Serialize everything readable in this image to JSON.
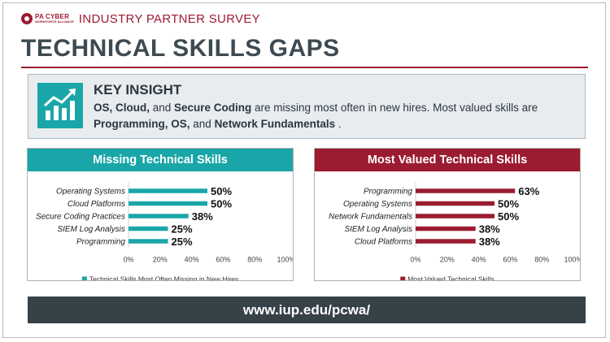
{
  "header": {
    "logo_text": "PA CYBER",
    "logo_sub": "WORKFORCE ALLIANCE",
    "survey_title": "INDUSTRY PARTNER SURVEY"
  },
  "page_title": "TECHNICAL SKILLS GAPS",
  "insight": {
    "icon": "growth-chart-icon",
    "heading": "KEY INSIGHT",
    "line1_part1": "OS, Cloud,",
    "line1_part2": " and ",
    "line1_part3": "Secure Coding",
    "line1_part4": " are missing most often in new hires.  Most valued skills are ",
    "line1_part5": "Programming, OS,",
    "line1_part6": " and ",
    "line1_part7": "Network Fundamentals",
    "line1_part8": " ."
  },
  "footer_url": "www.iup.edu/pcwa/",
  "colors": {
    "teal": "#1aa6a8",
    "maroon": "#9b1b30",
    "dark": "#364148"
  },
  "chart_data": [
    {
      "type": "bar",
      "orientation": "horizontal",
      "title": "Missing Technical Skills",
      "categories": [
        "Operating Systems",
        "Cloud Platforms",
        "Secure Coding Practices",
        "SIEM Log Analysis",
        "Programming"
      ],
      "series": [
        {
          "name": "Technical Skills Most Often Missing in New Hires",
          "values": [
            50,
            50,
            38,
            25,
            25
          ]
        }
      ],
      "data_labels": [
        "50%",
        "50%",
        "38%",
        "25%",
        "25%"
      ],
      "xlim": [
        0,
        100
      ],
      "ticks": [
        "0%",
        "20%",
        "40%",
        "60%",
        "80%",
        "100%"
      ],
      "legend": "bottom",
      "color": "#1aa6a8"
    },
    {
      "type": "bar",
      "orientation": "horizontal",
      "title": "Most Valued Technical Skills",
      "categories": [
        "Programming",
        "Operating Systems",
        "Network Fundamentals",
        "SIEM Log Analysis",
        "Cloud Platforms"
      ],
      "series": [
        {
          "name": "Most Valued Technical Skills",
          "values": [
            63,
            50,
            50,
            38,
            38
          ]
        }
      ],
      "data_labels": [
        "63%",
        "50%",
        "50%",
        "38%",
        "38%"
      ],
      "xlim": [
        0,
        100
      ],
      "ticks": [
        "0%",
        "20%",
        "40%",
        "60%",
        "80%",
        "100%"
      ],
      "legend": "bottom",
      "color": "#9b1b30"
    }
  ]
}
